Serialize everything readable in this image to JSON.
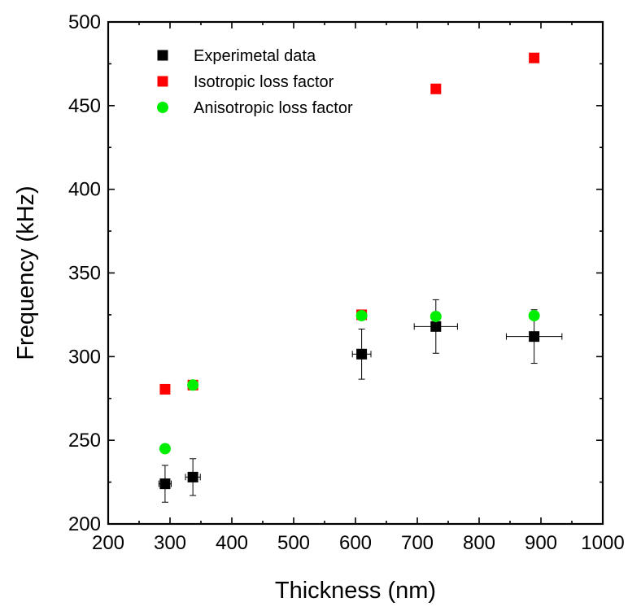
{
  "chart_data": {
    "type": "scatter",
    "title": "",
    "xlabel": "Thickness (nm)",
    "ylabel": "Frequency (kHz)",
    "xlim": [
      200,
      1000
    ],
    "ylim": [
      200,
      500
    ],
    "xticks": [
      200,
      300,
      400,
      500,
      600,
      700,
      800,
      900,
      1000
    ],
    "yticks": [
      200,
      250,
      300,
      350,
      400,
      450,
      500
    ],
    "grid": false,
    "legend_position": "top-left",
    "series": [
      {
        "name": "Experimetal data",
        "marker": "square",
        "color": "#000000",
        "points": [
          {
            "x": 292,
            "y": 224,
            "xerr": 10,
            "yerr": 11
          },
          {
            "x": 337,
            "y": 228,
            "xerr": 12,
            "yerr": 11
          },
          {
            "x": 610,
            "y": 301.5,
            "xerr": 15,
            "yerr": 15
          },
          {
            "x": 730,
            "y": 318,
            "xerr": 35,
            "yerr": 16
          },
          {
            "x": 889,
            "y": 312,
            "xerr": 45,
            "yerr": 16
          }
        ]
      },
      {
        "name": "Isotropic loss factor",
        "marker": "square",
        "color": "#ff0000",
        "points": [
          {
            "x": 292,
            "y": 280.5
          },
          {
            "x": 337,
            "y": 283
          },
          {
            "x": 610,
            "y": 325
          },
          {
            "x": 730,
            "y": 460
          },
          {
            "x": 889,
            "y": 478.5
          }
        ]
      },
      {
        "name": "Anisotropic loss factor",
        "marker": "circle",
        "color": "#00ee00",
        "points": [
          {
            "x": 292,
            "y": 245
          },
          {
            "x": 337,
            "y": 283
          },
          {
            "x": 610,
            "y": 324.5
          },
          {
            "x": 730,
            "y": 324
          },
          {
            "x": 889,
            "y": 324.5
          }
        ]
      }
    ]
  }
}
